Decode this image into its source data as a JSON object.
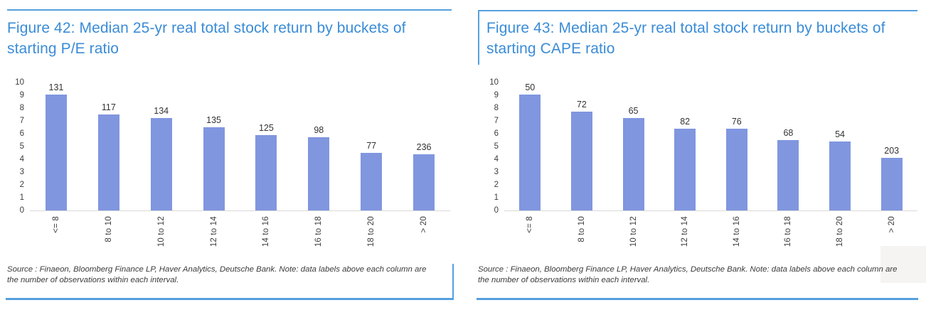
{
  "colors": {
    "title_blue": "#3a8cd7",
    "rule_blue": "#55a0dd",
    "bar_fill": "#8096df",
    "axis_line": "#d9d9d9",
    "bar_label_text": "#333333",
    "tick_text": "#3d3d3d",
    "source_text": "#3b3b3b"
  },
  "chart_data": [
    {
      "type": "bar",
      "title": "Figure 42: Median 25-yr real total stock return by buckets of starting P/E ratio",
      "categories": [
        "<= 8",
        "8 to 10",
        "10 to 12",
        "12 to 14",
        "14 to 16",
        "16 to 18",
        "18 to 20",
        "> 20"
      ],
      "values": [
        9.3,
        7.5,
        7.2,
        6.5,
        5.9,
        5.7,
        4.5,
        4.4
      ],
      "bar_labels": [
        "131",
        "117",
        "134",
        "135",
        "125",
        "98",
        "77",
        "236"
      ],
      "xlabel": "",
      "ylabel": "",
      "ylim": [
        0,
        10
      ],
      "yticks": [
        0,
        1,
        2,
        3,
        4,
        5,
        6,
        7,
        8,
        9,
        10
      ],
      "grid": false,
      "legend_position": "none",
      "source_note": "Source : Finaeon, Bloomberg Finance LP, Haver Analytics, Deutsche Bank. Note: data labels above each column are the number of observations within each interval."
    },
    {
      "type": "bar",
      "title": "Figure 43: Median 25-yr real total stock return by buckets of starting CAPE ratio",
      "categories": [
        "<= 8",
        "8 to 10",
        "10 to 12",
        "12 to 14",
        "14 to 16",
        "16 to 18",
        "18 to 20",
        "> 20"
      ],
      "values": [
        9.3,
        7.7,
        7.2,
        6.4,
        6.4,
        5.5,
        5.4,
        4.1
      ],
      "bar_labels": [
        "50",
        "72",
        "65",
        "82",
        "76",
        "68",
        "54",
        "203"
      ],
      "xlabel": "",
      "ylabel": "",
      "ylim": [
        0,
        10
      ],
      "yticks": [
        0,
        1,
        2,
        3,
        4,
        5,
        6,
        7,
        8,
        9,
        10
      ],
      "grid": false,
      "legend_position": "none",
      "source_note": "Source : Finaeon, Bloomberg Finance LP, Haver Analytics, Deutsche Bank. Note: data labels above each column are the number of observations within each interval."
    }
  ]
}
